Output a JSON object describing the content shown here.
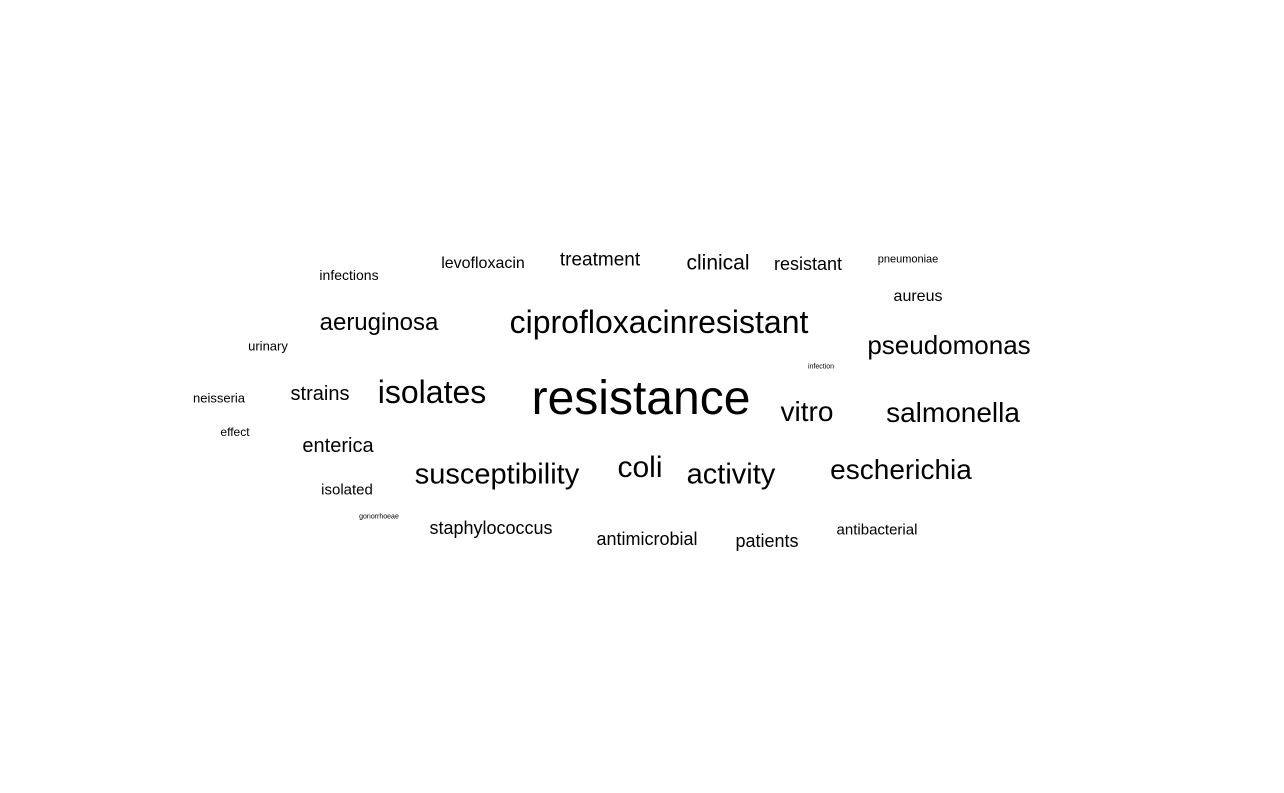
{
  "word_cloud": {
    "words": [
      "resistance",
      "ciprofloxacinresistant",
      "isolates",
      "susceptibility",
      "coli",
      "activity",
      "vitro",
      "salmonella",
      "escherichia",
      "pseudomonas",
      "aeruginosa",
      "enterica",
      "strains",
      "clinical",
      "treatment",
      "resistant",
      "staphylococcus",
      "antimicrobial",
      "patients",
      "antibacterial",
      "aureus",
      "levofloxacin",
      "infections",
      "isolated",
      "urinary",
      "neisseria",
      "effect",
      "pneumoniae",
      "infection",
      "gonorrhoeae"
    ],
    "text_color": "#000000",
    "background_color": "#ffffff"
  }
}
